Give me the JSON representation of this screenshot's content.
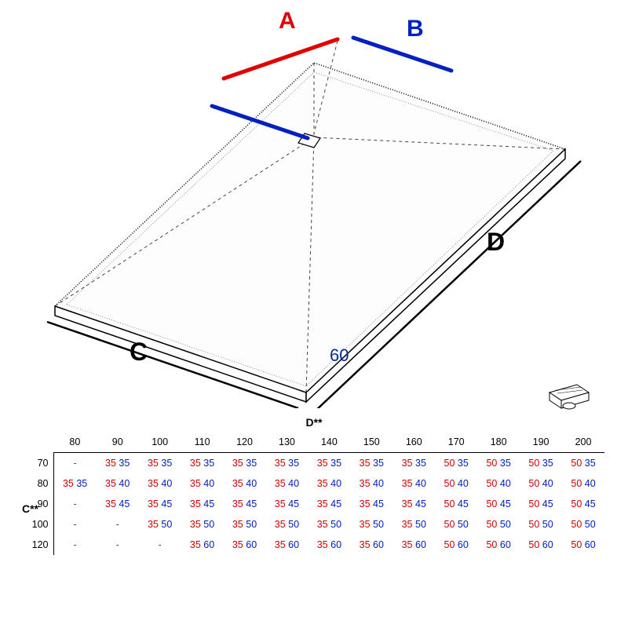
{
  "diagram": {
    "labels": {
      "A": "A",
      "B": "B",
      "C": "C",
      "D": "D",
      "sixty": "60"
    },
    "colors": {
      "A": "#e00000",
      "B": "#0020c0",
      "outline": "#000000",
      "dash": "#444444",
      "bg": "#ffffff"
    },
    "label_fontsize": 28,
    "sixty_fontsize": 20,
    "sixty_color": "#003090",
    "line_widths": {
      "AB": 4,
      "outline": 2,
      "dash": 1
    }
  },
  "table": {
    "header_D": "D**",
    "header_C": "C**",
    "d_values": [
      "80",
      "90",
      "100",
      "110",
      "120",
      "130",
      "140",
      "150",
      "160",
      "170",
      "180",
      "190",
      "200"
    ],
    "c_values": [
      "70",
      "80",
      "90",
      "100",
      "120"
    ],
    "colors": {
      "a": "#d10000",
      "b": "#0020c0",
      "head": "#000000"
    },
    "fontsize": 13,
    "rows": [
      [
        null,
        [
          "35",
          "35"
        ],
        [
          "35",
          "35"
        ],
        [
          "35",
          "35"
        ],
        [
          "35",
          "35"
        ],
        [
          "35",
          "35"
        ],
        [
          "35",
          "35"
        ],
        [
          "35",
          "35"
        ],
        [
          "35",
          "35"
        ],
        [
          "50",
          "35"
        ],
        [
          "50",
          "35"
        ],
        [
          "50",
          "35"
        ],
        [
          "50",
          "35"
        ]
      ],
      [
        [
          "35",
          "35"
        ],
        [
          "35",
          "40"
        ],
        [
          "35",
          "40"
        ],
        [
          "35",
          "40"
        ],
        [
          "35",
          "40"
        ],
        [
          "35",
          "40"
        ],
        [
          "35",
          "40"
        ],
        [
          "35",
          "40"
        ],
        [
          "35",
          "40"
        ],
        [
          "50",
          "40"
        ],
        [
          "50",
          "40"
        ],
        [
          "50",
          "40"
        ],
        [
          "50",
          "40"
        ]
      ],
      [
        null,
        [
          "35",
          "45"
        ],
        [
          "35",
          "45"
        ],
        [
          "35",
          "45"
        ],
        [
          "35",
          "45"
        ],
        [
          "35",
          "45"
        ],
        [
          "35",
          "45"
        ],
        [
          "35",
          "45"
        ],
        [
          "35",
          "45"
        ],
        [
          "50",
          "45"
        ],
        [
          "50",
          "45"
        ],
        [
          "50",
          "45"
        ],
        [
          "50",
          "45"
        ]
      ],
      [
        null,
        null,
        [
          "35",
          "50"
        ],
        [
          "35",
          "50"
        ],
        [
          "35",
          "50"
        ],
        [
          "35",
          "50"
        ],
        [
          "35",
          "50"
        ],
        [
          "35",
          "50"
        ],
        [
          "35",
          "50"
        ],
        [
          "50",
          "50"
        ],
        [
          "50",
          "50"
        ],
        [
          "50",
          "50"
        ],
        [
          "50",
          "50"
        ]
      ],
      [
        null,
        null,
        null,
        [
          "35",
          "60"
        ],
        [
          "35",
          "60"
        ],
        [
          "35",
          "60"
        ],
        [
          "35",
          "60"
        ],
        [
          "35",
          "60"
        ],
        [
          "35",
          "60"
        ],
        [
          "50",
          "60"
        ],
        [
          "50",
          "60"
        ],
        [
          "50",
          "60"
        ],
        [
          "50",
          "60"
        ]
      ]
    ]
  }
}
